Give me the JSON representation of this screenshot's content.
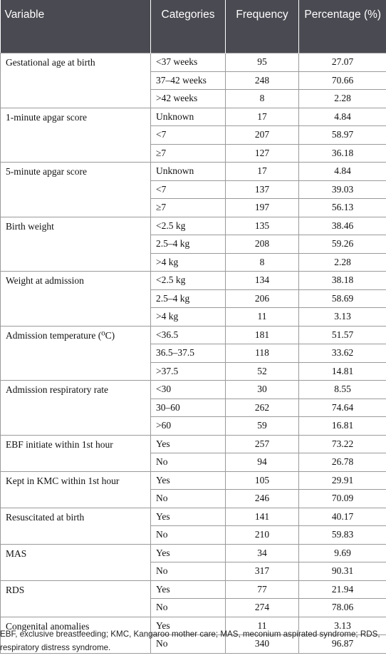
{
  "header": {
    "variable": "Variable",
    "categories": "Categories",
    "frequency": "Frequency",
    "percentage": "Percentage (%)"
  },
  "groups": [
    {
      "variable": "Gestational age at birth",
      "rows": [
        {
          "category": "<37 weeks",
          "frequency": "95",
          "percentage": "27.07"
        },
        {
          "category": "37–42 weeks",
          "frequency": "248",
          "percentage": "70.66"
        },
        {
          "category": ">42 weeks",
          "frequency": "8",
          "percentage": "2.28"
        }
      ]
    },
    {
      "variable": "1-minute apgar score",
      "rows": [
        {
          "category": "Unknown",
          "frequency": "17",
          "percentage": "4.84"
        },
        {
          "category": "<7",
          "frequency": "207",
          "percentage": "58.97"
        },
        {
          "category": "≥7",
          "frequency": "127",
          "percentage": "36.18"
        }
      ]
    },
    {
      "variable": "5-minute apgar score",
      "rows": [
        {
          "category": "Unknown",
          "frequency": "17",
          "percentage": "4.84"
        },
        {
          "category": "<7",
          "frequency": "137",
          "percentage": "39.03"
        },
        {
          "category": "≥7",
          "frequency": "197",
          "percentage": "56.13"
        }
      ]
    },
    {
      "variable": "Birth weight",
      "rows": [
        {
          "category": "<2.5 kg",
          "frequency": "135",
          "percentage": "38.46"
        },
        {
          "category": "2.5–4 kg",
          "frequency": "208",
          "percentage": "59.26"
        },
        {
          "category": ">4 kg",
          "frequency": "8",
          "percentage": "2.28"
        }
      ]
    },
    {
      "variable": "Weight at admission",
      "rows": [
        {
          "category": "<2.5 kg",
          "frequency": "134",
          "percentage": "38.18"
        },
        {
          "category": "2.5–4 kg",
          "frequency": "206",
          "percentage": "58.69"
        },
        {
          "category": ">4 kg",
          "frequency": "11",
          "percentage": "3.13"
        }
      ]
    },
    {
      "variable": "Admission temperature (⁰C)",
      "rows": [
        {
          "category": "<36.5",
          "frequency": "181",
          "percentage": "51.57"
        },
        {
          "category": "36.5–37.5",
          "frequency": "118",
          "percentage": "33.62"
        },
        {
          "category": ">37.5",
          "frequency": "52",
          "percentage": "14.81"
        }
      ]
    },
    {
      "variable": "Admission respiratory rate",
      "rows": [
        {
          "category": "<30",
          "frequency": "30",
          "percentage": "8.55"
        },
        {
          "category": "30–60",
          "frequency": "262",
          "percentage": "74.64"
        },
        {
          "category": ">60",
          "frequency": "59",
          "percentage": "16.81"
        }
      ]
    },
    {
      "variable": "EBF initiate within 1st hour",
      "rows": [
        {
          "category": "Yes",
          "frequency": "257",
          "percentage": "73.22"
        },
        {
          "category": "No",
          "frequency": "94",
          "percentage": "26.78"
        }
      ]
    },
    {
      "variable": "Kept in KMC within 1st hour",
      "rows": [
        {
          "category": "Yes",
          "frequency": "105",
          "percentage": "29.91"
        },
        {
          "category": "No",
          "frequency": "246",
          "percentage": "70.09"
        }
      ]
    },
    {
      "variable": "Resuscitated at birth",
      "rows": [
        {
          "category": "Yes",
          "frequency": "141",
          "percentage": "40.17"
        },
        {
          "category": "No",
          "frequency": "210",
          "percentage": "59.83"
        }
      ]
    },
    {
      "variable": "MAS",
      "rows": [
        {
          "category": "Yes",
          "frequency": "34",
          "percentage": "9.69"
        },
        {
          "category": "No",
          "frequency": "317",
          "percentage": "90.31"
        }
      ]
    },
    {
      "variable": "RDS",
      "rows": [
        {
          "category": "Yes",
          "frequency": "77",
          "percentage": "21.94"
        },
        {
          "category": "No",
          "frequency": "274",
          "percentage": "78.06"
        }
      ]
    },
    {
      "variable": "Congenital anomalies",
      "rows": [
        {
          "category": "Yes",
          "frequency": "11",
          "percentage": "3.13"
        },
        {
          "category": "No",
          "frequency": "340",
          "percentage": "96.87"
        }
      ]
    }
  ],
  "footnote": "EBF, exclusive breastfeeding; KMC, Kangaroo mother care; MAS, meconium aspirated syndrome; RDS, respiratory distress syndrome."
}
